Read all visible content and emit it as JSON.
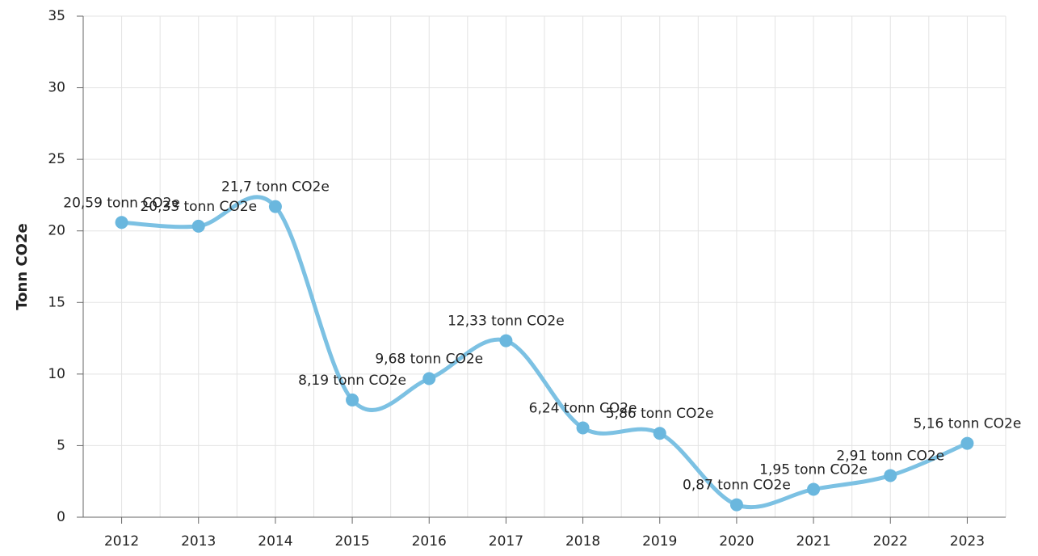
{
  "chart_data": {
    "type": "line",
    "ylabel": "Tonn CO2e",
    "categories": [
      "2012",
      "2013",
      "2014",
      "2015",
      "2016",
      "2017",
      "2018",
      "2019",
      "2020",
      "2021",
      "2022",
      "2023"
    ],
    "series": [
      {
        "color": "#7cc1e3",
        "values": [
          20.59,
          20.33,
          21.7,
          8.19,
          9.68,
          12.33,
          6.24,
          5.86,
          0.87,
          1.95,
          2.91,
          5.16
        ],
        "value_labels": [
          "20,59 tonn CO2e",
          "20,33 tonn CO2e",
          "21,7 tonn CO2e",
          "8,19 tonn CO2e",
          "9,68 tonn CO2e",
          "12,33 tonn CO2e",
          "6,24 tonn CO2e",
          "5,86 tonn CO2e",
          "0,87 tonn CO2e",
          "1,95 tonn CO2e",
          "2,91 tonn CO2e",
          "5,16 tonn CO2e"
        ]
      }
    ],
    "ylim": [
      0,
      35
    ],
    "yticks": [
      0,
      5,
      10,
      15,
      20,
      25,
      30,
      35
    ],
    "grid": true
  }
}
